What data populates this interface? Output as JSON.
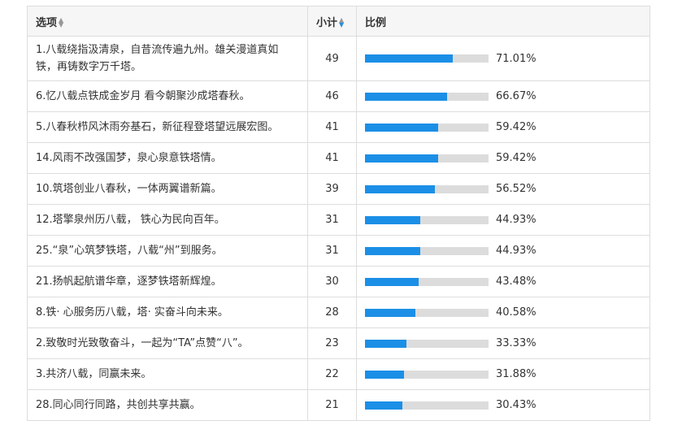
{
  "header": {
    "option_label": "选项",
    "count_label": "小计",
    "ratio_label": "比例"
  },
  "rows": [
    {
      "option": "1.八载绕指汲清泉，自昔流传遍九州。雄关漫道真如铁，再铸数字万千塔。",
      "count": "49",
      "percent_text": "71.01%",
      "percent": 71.01
    },
    {
      "option": "6.忆八载点铁成金岁月 看今朝聚沙成塔春秋。",
      "count": "46",
      "percent_text": "66.67%",
      "percent": 66.67
    },
    {
      "option": "5.八春秋栉风沐雨夯基石，新征程登塔望远展宏图。",
      "count": "41",
      "percent_text": "59.42%",
      "percent": 59.42
    },
    {
      "option": "14.风雨不改强国梦，泉心泉意铁塔情。",
      "count": "41",
      "percent_text": "59.42%",
      "percent": 59.42
    },
    {
      "option": "10.筑塔创业八春秋，一体两翼谱新篇。",
      "count": "39",
      "percent_text": "56.52%",
      "percent": 56.52
    },
    {
      "option": "12.塔擎泉州历八载， 铁心为民向百年。",
      "count": "31",
      "percent_text": "44.93%",
      "percent": 44.93
    },
    {
      "option": "25.“泉”心筑梦铁塔，八载“州”到服务。",
      "count": "31",
      "percent_text": "44.93%",
      "percent": 44.93
    },
    {
      "option": "21.扬帆起航谱华章，逐梦铁塔新辉煌。",
      "count": "30",
      "percent_text": "43.48%",
      "percent": 43.48
    },
    {
      "option": "8.铁· 心服务历八载，塔· 实奋斗向未来。",
      "count": "28",
      "percent_text": "40.58%",
      "percent": 40.58
    },
    {
      "option": "2.致敬时光致敬奋斗，一起为“TA”点赞“八”。",
      "count": "23",
      "percent_text": "33.33%",
      "percent": 33.33
    },
    {
      "option": "3.共济八载，同赢未来。",
      "count": "22",
      "percent_text": "31.88%",
      "percent": 31.88
    },
    {
      "option": "28.同心同行同路，共创共享共赢。",
      "count": "21",
      "percent_text": "30.43%",
      "percent": 30.43
    }
  ],
  "colors": {
    "bar_fill": "#1b8fe6",
    "bar_track": "#dcdcdc",
    "header_bg": "#f6f6f6",
    "border": "#dddddd"
  },
  "icons": {
    "sort": "sort-icon"
  }
}
